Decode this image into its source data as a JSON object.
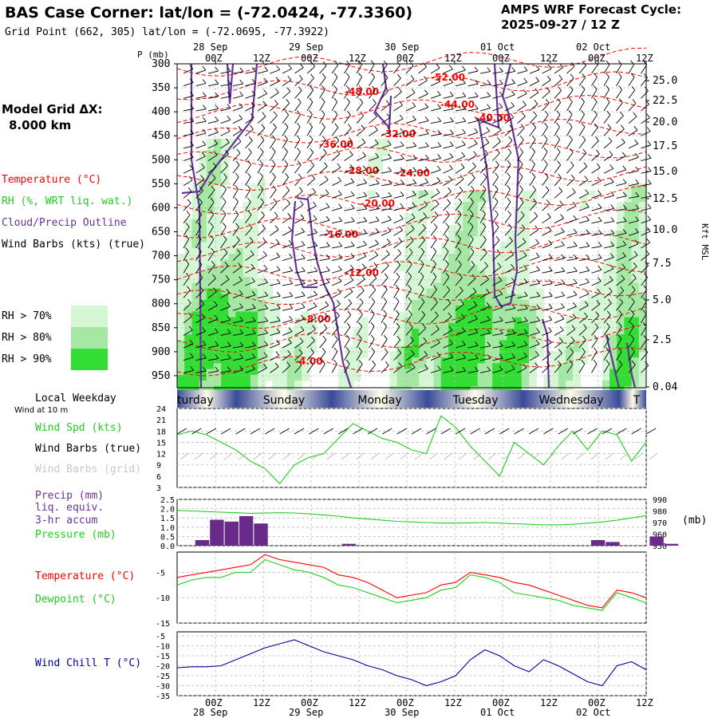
{
  "header": {
    "title": "BAS Case Corner:  lat/lon = (-72.0424, -77.3360)",
    "subtitle": "Grid Point (662, 305) lat/lon = (-72.0695, -77.3922)",
    "cycle_line1": "AMPS WRF Forecast Cycle:",
    "cycle_line2": "2025-09-27 / 12  Z"
  },
  "colors": {
    "rh70": "#d6f7d6",
    "rh80": "#a4e8a4",
    "rh90": "#33dd33",
    "temperature": "#ff0000",
    "cloud": "#663399",
    "windspd": "#22cc22",
    "dewpoint": "#22cc22",
    "windchill": "#000099",
    "pressure": "#22cc22",
    "precip": "#6a2a8a",
    "dayband": "#3a4a9a"
  },
  "left_panel": {
    "model_grid_label": "Model Grid ΔX:",
    "model_grid_value": "8.000 km",
    "legend_temperature": "Temperature (°C)",
    "legend_rh": "RH (%, WRT liq. wat.)",
    "legend_cloud": "Cloud/Precip Outline",
    "legend_barbs": "Wind Barbs (kts) (true)",
    "rh_levels": [
      "RH > 70%",
      "RH > 80%",
      "RH > 90%"
    ],
    "local_weekday": "Local Weekday",
    "wind_at_10m": "Wind at 10 m",
    "wind_spd": "Wind Spd (kts)",
    "wind_barbs_true": "Wind Barbs (true)",
    "wind_barbs_grid": "Wind Barbs (grid)",
    "precip_line1": "Precip (mm)",
    "precip_line2": "liq. equiv.",
    "precip_line3": "3-hr accum",
    "pressure_label": "Pressure (mb)",
    "temperature_label": "Temperature (°C)",
    "dewpoint_label": "Dewpoint (°C)",
    "windchill_label": "Wind Chill T (°C)"
  },
  "time_axis": {
    "p_label": "P (mb)",
    "hour_labels": [
      "00Z",
      "12Z",
      "00Z",
      "12Z",
      "00Z",
      "12Z",
      "00Z",
      "12Z",
      "00Z",
      "12Z"
    ],
    "date_labels": [
      "28 Sep",
      "29 Sep",
      "30 Sep",
      "01 Oct",
      "02 Oct"
    ],
    "weekdays": [
      "turday",
      "Sunday",
      "Monday",
      "Tuesday",
      "Wednesday",
      "T"
    ]
  },
  "chart_data": [
    {
      "type": "heatmap",
      "panel": "cross-section",
      "y_axis": "pressure (mb)",
      "ylim": [
        300,
        975
      ],
      "pressure_ticks": [
        300,
        350,
        400,
        450,
        500,
        550,
        600,
        650,
        700,
        750,
        800,
        850,
        900,
        950
      ],
      "right_axis_label": "Kft MSL",
      "height_ticks_kft": [
        "25.0",
        "22.5",
        "20.0",
        "17.5",
        "15.0",
        "12.5",
        "10.0",
        "7.5",
        "5.0",
        "2.5",
        "0.04"
      ],
      "temperature_contour_labels": [
        "-52.00",
        "-48.00",
        "-44.00",
        "-40.00",
        "-36.00",
        "-32.00",
        "-28.00",
        "-24.00",
        "-20.00",
        "-16.00",
        "-12.00",
        "-8.00",
        "-4.00"
      ]
    },
    {
      "type": "line",
      "panel": "wind speed",
      "series": [
        {
          "name": "Wind Spd (kts)",
          "values": [
            17,
            18,
            17,
            15,
            13,
            10,
            8,
            4,
            9,
            11,
            12,
            16,
            20,
            18,
            16,
            15,
            13,
            12,
            22,
            19,
            14,
            10,
            6,
            15,
            12,
            9,
            14,
            18,
            13,
            18,
            17,
            10,
            15
          ]
        }
      ],
      "yticks": [
        3,
        6,
        9,
        12,
        15,
        18,
        21,
        24
      ],
      "ylim": [
        3,
        24
      ]
    },
    {
      "type": "bar",
      "panel": "precip and pressure",
      "precip_values": [
        0.3,
        1.4,
        1.3,
        1.6,
        1.2,
        0,
        0,
        0,
        0,
        0,
        0.1,
        0,
        0,
        0,
        0,
        0,
        0,
        0,
        0,
        0,
        0,
        0,
        0,
        0,
        0.02,
        0,
        0,
        0.3,
        0.2,
        0,
        0,
        0.5,
        0.1
      ],
      "pressure_values": [
        980.5,
        980,
        979.5,
        979,
        978.5,
        978,
        978.2,
        978.5,
        978.3,
        977.5,
        976.5,
        975.5,
        974,
        973,
        972,
        971,
        970.5,
        970,
        969.5,
        969.5,
        969.8,
        970,
        969.5,
        969,
        968.5,
        968,
        968,
        968.5,
        969.5,
        970.5,
        972,
        974,
        976
      ],
      "left_ticks": [
        "0.0",
        "0.5",
        "1.0",
        "1.5",
        "2.0",
        "2.5"
      ],
      "right_ticks": [
        950,
        960,
        970,
        980,
        990
      ],
      "right_unit": "(mb)",
      "ylim_precip": [
        0,
        2.5
      ],
      "ylim_pressure": [
        950,
        990
      ]
    },
    {
      "type": "line",
      "panel": "temperature and dewpoint",
      "series": [
        {
          "name": "Temperature (°C)",
          "values": [
            -6,
            -5.5,
            -5,
            -4.5,
            -4,
            -3.5,
            -1.5,
            -2.5,
            -3,
            -3.5,
            -4,
            -5.5,
            -6,
            -7,
            -8.5,
            -10,
            -9.5,
            -9,
            -7.5,
            -7,
            -5,
            -5.5,
            -6,
            -7,
            -7.5,
            -8.5,
            -9.5,
            -10.5,
            -11.5,
            -12,
            -8.5,
            -9,
            -10
          ]
        },
        {
          "name": "Dewpoint (°C)",
          "values": [
            -7.5,
            -6.5,
            -6,
            -6,
            -5,
            -5,
            -2.5,
            -3.5,
            -4.5,
            -5,
            -6,
            -7.5,
            -8,
            -9,
            -10,
            -11,
            -10.5,
            -10,
            -8.5,
            -8,
            -5.5,
            -6,
            -7,
            -9,
            -9.5,
            -10,
            -10.5,
            -11.5,
            -12,
            -12.5,
            -9,
            -10,
            -11
          ]
        }
      ],
      "yticks": [
        -15,
        -10,
        -5
      ],
      "ylim": [
        -15,
        -1
      ]
    },
    {
      "type": "line",
      "panel": "wind chill",
      "series": [
        {
          "name": "Wind Chill T (°C)",
          "values": [
            -21,
            -20.5,
            -20.5,
            -20,
            -17,
            -14,
            -11,
            -9,
            -7,
            -10,
            -13,
            -15,
            -17,
            -20,
            -22,
            -25,
            -27,
            -30,
            -28,
            -25,
            -17,
            -12,
            -15,
            -20,
            -23,
            -17,
            -20,
            -24,
            -28,
            -30,
            -20,
            -18,
            -22
          ]
        }
      ],
      "yticks": [
        -35,
        -30,
        -25,
        -20,
        -15,
        -10,
        -5
      ],
      "ylim": [
        -35,
        -3
      ]
    }
  ]
}
